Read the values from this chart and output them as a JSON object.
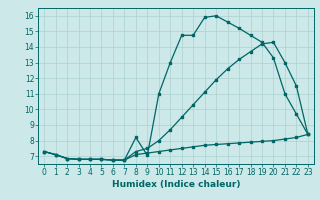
{
  "title": "",
  "xlabel": "Humidex (Indice chaleur)",
  "ylabel": "",
  "bg_color": "#cce8e8",
  "grid_color": "#b0d4d4",
  "line_color": "#006666",
  "xlim": [
    -0.5,
    23.5
  ],
  "ylim": [
    6.5,
    16.5
  ],
  "yticks": [
    7,
    8,
    9,
    10,
    11,
    12,
    13,
    14,
    15,
    16
  ],
  "xticks": [
    0,
    1,
    2,
    3,
    4,
    5,
    6,
    7,
    8,
    9,
    10,
    11,
    12,
    13,
    14,
    15,
    16,
    17,
    18,
    19,
    20,
    21,
    22,
    23
  ],
  "line1_x": [
    0,
    1,
    2,
    3,
    4,
    5,
    6,
    7,
    8,
    9,
    10,
    11,
    12,
    13,
    14,
    15,
    16,
    17,
    18,
    19,
    20,
    21,
    22,
    23
  ],
  "line1_y": [
    7.3,
    7.1,
    6.85,
    6.8,
    6.8,
    6.8,
    6.75,
    6.75,
    8.2,
    7.05,
    11.0,
    13.0,
    14.75,
    14.75,
    15.9,
    16.0,
    15.6,
    15.2,
    14.75,
    14.3,
    13.3,
    11.0,
    9.7,
    8.4
  ],
  "line2_x": [
    0,
    1,
    2,
    3,
    4,
    5,
    6,
    7,
    8,
    9,
    10,
    11,
    12,
    13,
    14,
    15,
    16,
    17,
    18,
    19,
    20,
    21,
    22,
    23
  ],
  "line2_y": [
    7.3,
    7.1,
    6.85,
    6.8,
    6.8,
    6.8,
    6.75,
    6.75,
    7.3,
    7.5,
    8.0,
    8.7,
    9.5,
    10.3,
    11.1,
    11.9,
    12.6,
    13.2,
    13.7,
    14.2,
    14.3,
    13.0,
    11.5,
    8.4
  ],
  "line3_x": [
    0,
    1,
    2,
    3,
    4,
    5,
    6,
    7,
    8,
    9,
    10,
    11,
    12,
    13,
    14,
    15,
    16,
    17,
    18,
    19,
    20,
    21,
    22,
    23
  ],
  "line3_y": [
    7.3,
    7.1,
    6.85,
    6.8,
    6.8,
    6.8,
    6.75,
    6.75,
    7.1,
    7.2,
    7.3,
    7.4,
    7.5,
    7.6,
    7.7,
    7.75,
    7.8,
    7.85,
    7.9,
    7.95,
    8.0,
    8.1,
    8.2,
    8.4
  ],
  "tick_fontsize": 5.5,
  "xlabel_fontsize": 6.5
}
